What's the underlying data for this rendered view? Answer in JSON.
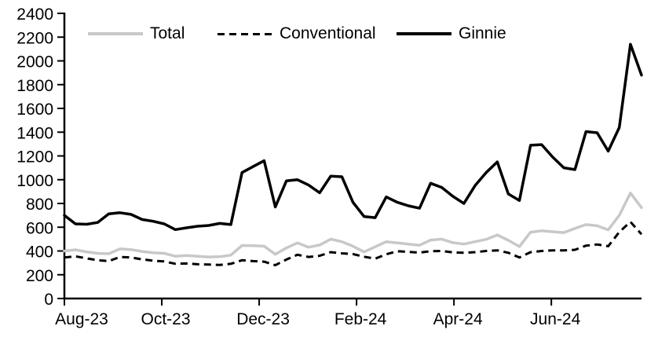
{
  "chart_data": {
    "type": "line",
    "title": "",
    "frequency": "weekly",
    "grid": "off",
    "legend_position": "top",
    "x_axis": {
      "tick_labels": [
        "Aug-23",
        "Oct-23",
        "Dec-23",
        "Feb-24",
        "Apr-24",
        "Jun-24"
      ],
      "tick_interval_weeks": 8.775
    },
    "y_axis": {
      "min": 0,
      "max": 2400,
      "step": 200,
      "tick_labels": [
        "0",
        "200",
        "400",
        "600",
        "800",
        "1000",
        "1200",
        "1400",
        "1600",
        "1800",
        "2000",
        "2200",
        "2400"
      ]
    },
    "series": [
      {
        "name": "Total",
        "color": "#c8c8c8",
        "style": "solid",
        "width": 3.5,
        "values": [
          400,
          410,
          393,
          380,
          377,
          418,
          412,
          396,
          385,
          380,
          356,
          362,
          356,
          350,
          352,
          365,
          446,
          445,
          440,
          372,
          425,
          468,
          432,
          450,
          500,
          478,
          440,
          392,
          435,
          478,
          468,
          458,
          448,
          492,
          500,
          470,
          458,
          478,
          498,
          535,
          490,
          437,
          558,
          570,
          562,
          555,
          590,
          622,
          612,
          578,
          700,
          888,
          765
        ]
      },
      {
        "name": "Conventional",
        "color": "#000000",
        "style": "dashed",
        "width": 3,
        "values": [
          345,
          355,
          338,
          322,
          315,
          350,
          345,
          330,
          318,
          312,
          292,
          295,
          288,
          286,
          282,
          292,
          322,
          315,
          310,
          280,
          328,
          368,
          350,
          360,
          390,
          380,
          374,
          352,
          335,
          372,
          398,
          392,
          386,
          398,
          400,
          388,
          385,
          390,
          400,
          405,
          385,
          345,
          390,
          400,
          405,
          405,
          410,
          445,
          455,
          440,
          560,
          645,
          540
        ]
      },
      {
        "name": "Ginnie",
        "color": "#000000",
        "style": "solid",
        "width": 3.5,
        "values": [
          700,
          628,
          625,
          640,
          712,
          722,
          708,
          665,
          650,
          628,
          580,
          595,
          608,
          615,
          632,
          622,
          1060,
          1110,
          1160,
          770,
          990,
          1000,
          955,
          890,
          1030,
          1025,
          810,
          690,
          680,
          855,
          810,
          780,
          760,
          970,
          935,
          860,
          800,
          950,
          1060,
          1150,
          880,
          825,
          1290,
          1295,
          1190,
          1100,
          1085,
          1405,
          1395,
          1240,
          1440,
          2140,
          1880
        ]
      }
    ]
  }
}
